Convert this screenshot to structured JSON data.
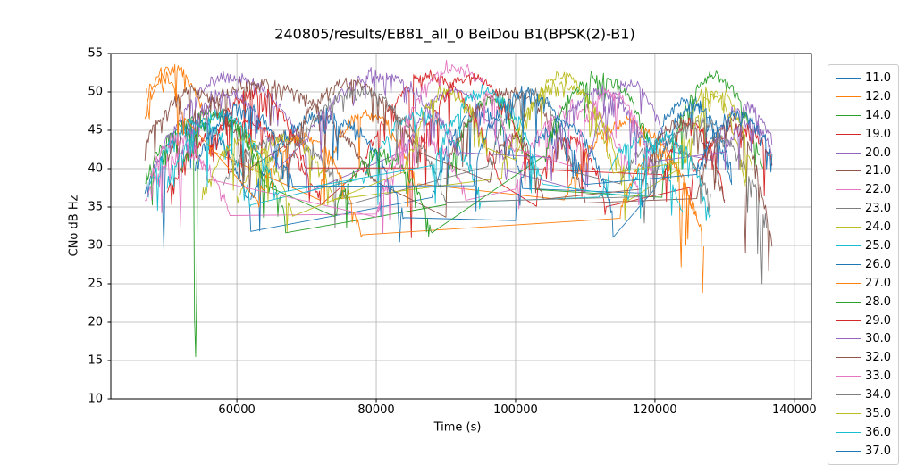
{
  "figure": {
    "title": "240805/results/EB81_all_0 BeiDou B1(BPSK(2)-B1)"
  },
  "chart_data": {
    "type": "line",
    "title": "240805/results/EB81_all_0 BeiDou B1(BPSK(2)-B1)",
    "xlabel": "Time (s)",
    "ylabel": "CNo dB Hz",
    "xlim": [
      41900,
      142460
    ],
    "ylim": [
      10,
      55
    ],
    "x_ticks": [
      60000,
      80000,
      100000,
      120000,
      140000
    ],
    "x_tick_labels": [
      "60000",
      "80000",
      "100000",
      "120000",
      "140000"
    ],
    "y_ticks": [
      10,
      15,
      20,
      25,
      30,
      35,
      40,
      45,
      50,
      55
    ],
    "y_tick_labels": [
      "10",
      "15",
      "20",
      "25",
      "30",
      "35",
      "40",
      "45",
      "50",
      "55"
    ],
    "grid": true,
    "colors": {
      "grid": "#b0b0b0",
      "frame": "#000000",
      "text": "#000000",
      "legend_border": "#cccccc"
    },
    "legend": {
      "position": "outside-right",
      "entries": [
        "11.0",
        "12.0",
        "14.0",
        "19.0",
        "20.0",
        "21.0",
        "22.0",
        "23.0",
        "24.0",
        "25.0",
        "26.0",
        "27.0",
        "28.0",
        "29.0",
        "30.0",
        "32.0",
        "33.0",
        "34.0",
        "35.0",
        "36.0",
        "37.0"
      ]
    },
    "series_description": "Per-satellite C/N0 vs time. Each arc is [t_start_s, t_end_s, cn0_start_dBHz, cn0_peak_dBHz, cn0_end_dBHz]; spikes are deep fades [t_s, cn0_dBHz]. Values estimated from gridlines of a very noisy plot.",
    "noise": {
      "sigma": 0.9,
      "dip_prob": 0.12,
      "dip_scale": 3.0,
      "deep_prob": 0.02,
      "deep_extra": 4.0,
      "step_s": 160
    },
    "series": [
      {
        "name": "11.0",
        "color": "#1f77b4",
        "seed": 1,
        "arcs": [
          [
            46800,
            62000,
            37,
            46,
            35
          ],
          [
            88000,
            101000,
            36,
            48,
            38
          ],
          [
            118000,
            131000,
            37,
            49,
            38
          ]
        ],
        "spikes": [
          [
            49500,
            29.5
          ]
        ]
      },
      {
        "name": "12.0",
        "color": "#ff7f0e",
        "seed": 2,
        "arcs": [
          [
            46800,
            56500,
            47,
            53,
            43
          ],
          [
            72000,
            86000,
            38,
            47,
            37
          ],
          [
            107000,
            126000,
            36,
            46,
            34
          ]
        ],
        "spikes": [
          [
            123800,
            27.2
          ]
        ]
      },
      {
        "name": "14.0",
        "color": "#2ca02c",
        "seed": 3,
        "arcs": [
          [
            46900,
            67000,
            39,
            47,
            34
          ],
          [
            90000,
            103000,
            38,
            49,
            38
          ],
          [
            121000,
            135500,
            38,
            52,
            40
          ]
        ],
        "spikes": [
          [
            54000,
            15.5
          ]
        ]
      },
      {
        "name": "19.0",
        "color": "#d62728",
        "seed": 4,
        "arcs": [
          [
            50000,
            72000,
            37,
            46,
            36
          ],
          [
            78000,
            98000,
            40,
            52,
            38
          ],
          [
            103000,
            113000,
            37,
            44,
            35
          ],
          [
            125000,
            136800,
            38,
            45,
            41
          ]
        ],
        "spikes": [
          [
            85000,
            31
          ]
        ]
      },
      {
        "name": "20.0",
        "color": "#9467bd",
        "seed": 5,
        "arcs": [
          [
            48000,
            70000,
            40,
            52,
            42
          ],
          [
            84000,
            99000,
            42,
            50,
            40
          ],
          [
            110000,
            122000,
            40,
            51,
            42
          ],
          [
            128000,
            136800,
            42,
            48,
            44
          ]
        ],
        "spikes": []
      },
      {
        "name": "21.0",
        "color": "#8c564b",
        "seed": 6,
        "arcs": [
          [
            50000,
            80000,
            42,
            51,
            38
          ],
          [
            90000,
            110000,
            40,
            50,
            36
          ],
          [
            126000,
            136800,
            36,
            46,
            30
          ]
        ],
        "spikes": [
          [
            133000,
            29
          ]
        ]
      },
      {
        "name": "22.0",
        "color": "#e377c2",
        "seed": 7,
        "arcs": [
          [
            46800,
            59000,
            36,
            42,
            34
          ],
          [
            80000,
            93000,
            34,
            44,
            36
          ],
          [
            100000,
            118000,
            38,
            48,
            36
          ]
        ],
        "spikes": [
          [
            52000,
            32.5
          ]
        ]
      },
      {
        "name": "23.0",
        "color": "#7f7f7f",
        "seed": 8,
        "arcs": [
          [
            58000,
            76000,
            38,
            44,
            36
          ],
          [
            96000,
            108000,
            40,
            50,
            40
          ],
          [
            115000,
            128000,
            38,
            44,
            36
          ]
        ],
        "spikes": []
      },
      {
        "name": "24.0",
        "color": "#bcbd22",
        "seed": 9,
        "arcs": [
          [
            60000,
            74000,
            36,
            44,
            36
          ],
          [
            98000,
            116000,
            40,
            51,
            38
          ],
          [
            123000,
            133000,
            40,
            50,
            38
          ]
        ],
        "spikes": []
      },
      {
        "name": "25.0",
        "color": "#17becf",
        "seed": 10,
        "arcs": [
          [
            47500,
            62000,
            38,
            46,
            36
          ],
          [
            78000,
            95000,
            38,
            47,
            36
          ],
          [
            112000,
            124000,
            36,
            44,
            34
          ]
        ],
        "spikes": []
      },
      {
        "name": "26.0",
        "color": "#1f77b4",
        "seed": 11,
        "arcs": [
          [
            62000,
            84000,
            36,
            47,
            34
          ],
          [
            100000,
            114000,
            36,
            46,
            34
          ],
          [
            120000,
            131000,
            38,
            48,
            40
          ]
        ],
        "spikes": []
      },
      {
        "name": "27.0",
        "color": "#ff7f0e",
        "seed": 12,
        "arcs": [
          [
            47000,
            52500,
            49,
            52,
            46
          ],
          [
            63000,
            78000,
            36,
            44,
            31
          ],
          [
            115000,
            127000,
            34,
            42,
            30
          ]
        ],
        "spikes": [
          [
            76500,
            33
          ],
          [
            124500,
            30
          ]
        ]
      },
      {
        "name": "28.0",
        "color": "#2ca02c",
        "seed": 13,
        "arcs": [
          [
            52000,
            64000,
            40,
            47,
            38
          ],
          [
            74000,
            88000,
            34,
            42,
            32
          ],
          [
            104000,
            119000,
            42,
            52,
            44
          ]
        ],
        "spikes": []
      },
      {
        "name": "29.0",
        "color": "#d62728",
        "seed": 14,
        "arcs": [
          [
            56000,
            70000,
            42,
            50,
            40
          ],
          [
            86000,
            102000,
            42,
            52,
            40
          ],
          [
            121000,
            130000,
            38,
            46,
            36
          ]
        ],
        "spikes": []
      },
      {
        "name": "30.0",
        "color": "#9467bd",
        "seed": 15,
        "arcs": [
          [
            52000,
            66000,
            42,
            50,
            40
          ],
          [
            70000,
            92000,
            44,
            52,
            42
          ],
          [
            105000,
            120000,
            42,
            50,
            40
          ],
          [
            130000,
            136800,
            42,
            46,
            42
          ]
        ],
        "spikes": []
      },
      {
        "name": "32.0",
        "color": "#8c564b",
        "seed": 16,
        "arcs": [
          [
            46800,
            62000,
            43,
            50,
            40
          ],
          [
            68000,
            86000,
            44,
            51,
            42
          ],
          [
            96000,
            104000,
            38,
            44,
            36
          ],
          [
            118000,
            130000,
            38,
            46,
            36
          ]
        ],
        "spikes": []
      },
      {
        "name": "33.0",
        "color": "#e377c2",
        "seed": 17,
        "arcs": [
          [
            47500,
            56000,
            39,
            44,
            38
          ],
          [
            80000,
            100000,
            34,
            53,
            42
          ],
          [
            108000,
            120000,
            40,
            50,
            38
          ]
        ],
        "spikes": []
      },
      {
        "name": "34.0",
        "color": "#7f7f7f",
        "seed": 18,
        "arcs": [
          [
            66000,
            90000,
            38,
            50,
            36
          ],
          [
            118000,
            136000,
            36,
            46,
            33
          ]
        ],
        "spikes": [
          [
            135300,
            25
          ]
        ]
      },
      {
        "name": "35.0",
        "color": "#bcbd22",
        "seed": 19,
        "arcs": [
          [
            55000,
            68000,
            36,
            44,
            34
          ],
          [
            84000,
            96000,
            40,
            50,
            42
          ],
          [
            100000,
            114000,
            42,
            52,
            40
          ],
          [
            124000,
            134000,
            40,
            50,
            40
          ]
        ],
        "spikes": []
      },
      {
        "name": "36.0",
        "color": "#17becf",
        "seed": 20,
        "arcs": [
          [
            50000,
            66000,
            38,
            47,
            36
          ],
          [
            88000,
            104000,
            40,
            50,
            38
          ],
          [
            116000,
            128000,
            36,
            44,
            34
          ]
        ],
        "spikes": []
      },
      {
        "name": "37.0",
        "color": "#1f77b4",
        "seed": 21,
        "arcs": [
          [
            54000,
            68000,
            40,
            48,
            38
          ],
          [
            94000,
            110000,
            40,
            50,
            38
          ],
          [
            126000,
            136800,
            40,
            47,
            42
          ]
        ],
        "spikes": []
      }
    ]
  }
}
